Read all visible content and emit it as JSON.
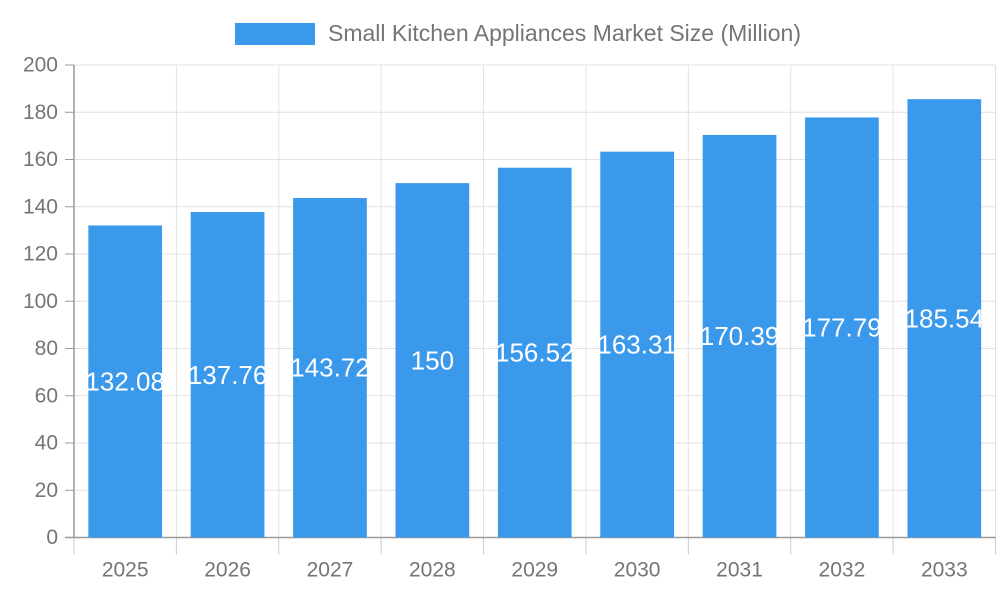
{
  "legend": {
    "label": "Small Kitchen Appliances Market Size (Million)"
  },
  "colors": {
    "bar": "#3B99EC",
    "grid": "#E2E2E2",
    "axis": "#999999",
    "tick": "#CCCCCC",
    "text": "#757575",
    "bar_label": "#FFFFFF",
    "background": "#FFFFFF"
  },
  "chart_data": {
    "type": "bar",
    "title": "Small Kitchen Appliances Market Size (Million)",
    "categories": [
      "2025",
      "2026",
      "2027",
      "2028",
      "2029",
      "2030",
      "2031",
      "2032",
      "2033"
    ],
    "values": [
      132.08,
      137.76,
      143.72,
      150,
      156.52,
      163.31,
      170.39,
      177.79,
      185.54
    ],
    "xlabel": "",
    "ylabel": "",
    "ylim": [
      0,
      200
    ],
    "ytick_step": 20,
    "grid": true,
    "legend_position": "top",
    "bar_label_position": "inside-center",
    "bar_label_color": "#FFFFFF"
  }
}
